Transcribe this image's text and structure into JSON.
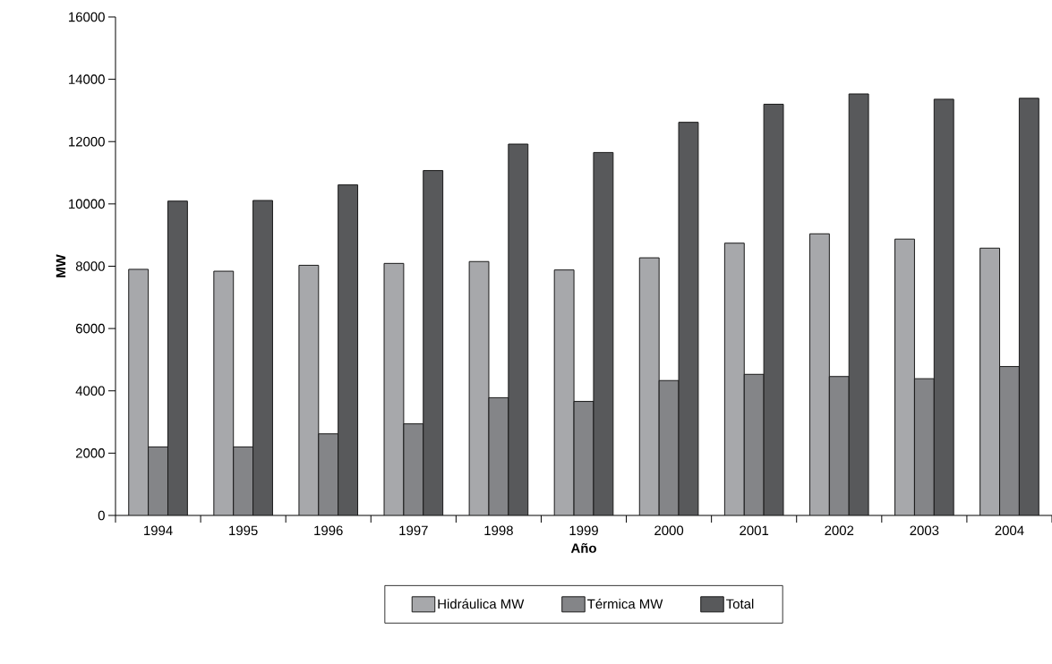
{
  "chart_data": {
    "type": "bar",
    "xlabel": "Año",
    "ylabel": "MW",
    "categories": [
      "1994",
      "1995",
      "1996",
      "1997",
      "1998",
      "1999",
      "2000",
      "2001",
      "2002",
      "2003",
      "2004"
    ],
    "series": [
      {
        "name": "Hidráulica MW",
        "color": "#a7a8ab",
        "values": [
          7900,
          7840,
          8030,
          8090,
          8150,
          7880,
          8270,
          8740,
          9040,
          8870,
          8580
        ]
      },
      {
        "name": "Térmica MW",
        "color": "#848588",
        "values": [
          2200,
          2200,
          2620,
          2940,
          3780,
          3660,
          4330,
          4530,
          4460,
          4390,
          4780
        ]
      },
      {
        "name": "Total",
        "color": "#58595b",
        "values": [
          10090,
          10110,
          10610,
          11070,
          11920,
          11650,
          12620,
          13200,
          13530,
          13360,
          13390
        ]
      }
    ],
    "ylim": [
      0,
      16000
    ],
    "yticks": [
      0,
      2000,
      4000,
      6000,
      8000,
      10000,
      12000,
      14000,
      16000
    ],
    "grid": false,
    "legend": "bottom"
  }
}
